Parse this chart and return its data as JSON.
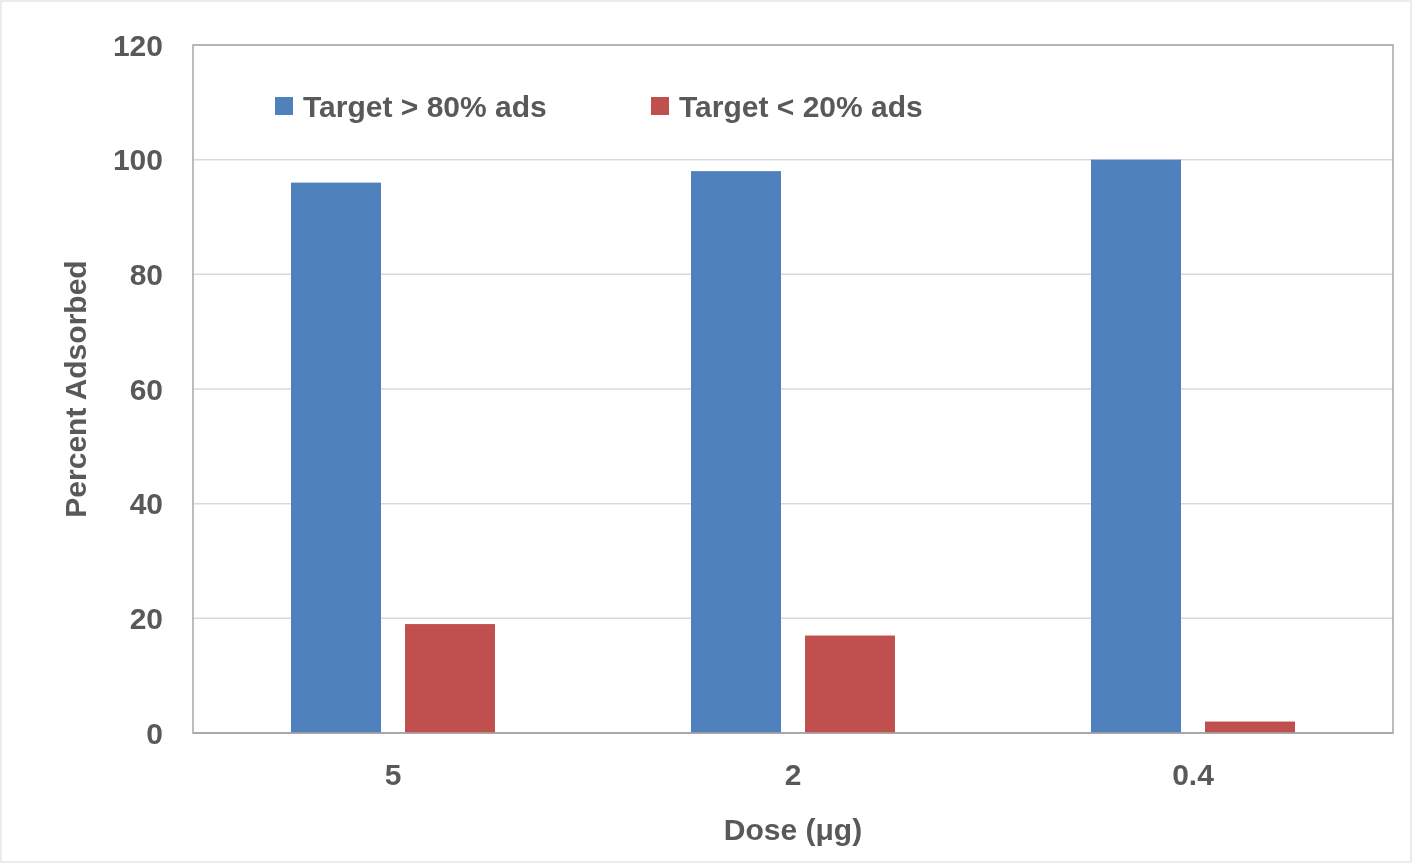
{
  "chart_data": {
    "type": "bar",
    "xlabel": "Dose (μg)",
    "ylabel": "Percent Adsorbed",
    "categories": [
      "5",
      "2",
      "0.4"
    ],
    "series": [
      {
        "name": "Target > 80% ads",
        "color": "#4f81bd",
        "values": [
          96,
          98,
          100
        ]
      },
      {
        "name": "Target < 20% ads",
        "color": "#c0504d",
        "values": [
          19,
          17,
          2
        ]
      }
    ],
    "ylim": [
      0,
      120
    ],
    "yticks": [
      0,
      20,
      40,
      60,
      80,
      100,
      120
    ],
    "grid": "y",
    "legend": "top left"
  }
}
